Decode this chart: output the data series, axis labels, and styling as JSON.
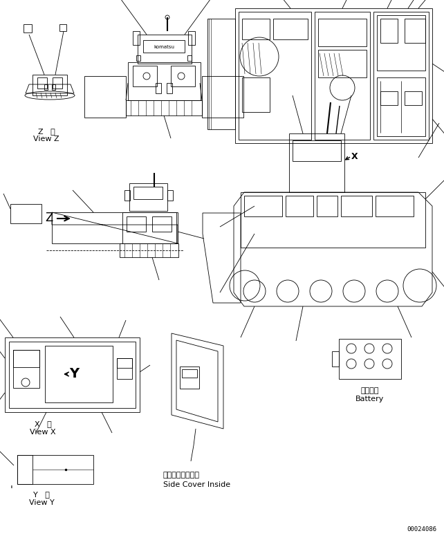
{
  "bg_color": "#ffffff",
  "line_color": "#000000",
  "fig_width": 6.42,
  "fig_height": 7.78,
  "dpi": 100,
  "part_number": "00024086",
  "labels": {
    "view_z_jp": "Z   視",
    "view_z_en": "View Z",
    "view_x_jp": "X   視",
    "view_x_en": "View X",
    "view_y_jp": "Y   視",
    "view_y_en": "View Y",
    "side_cover_jp": "サイドカバー内側",
    "side_cover_en": "Side Cover Inside",
    "battery_jp": "バッテリ",
    "battery_en": "Battery"
  }
}
